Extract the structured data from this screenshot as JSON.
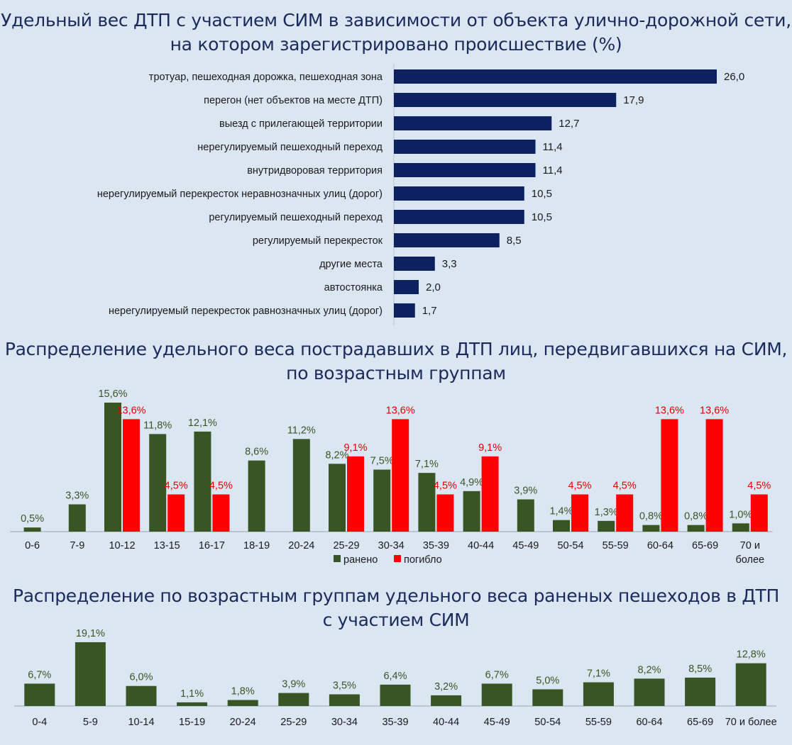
{
  "colors": {
    "background": "#dbe6f3",
    "navy": "#0d2160",
    "green": "#375623",
    "red": "#ff0000",
    "title": "#1a2a5a"
  },
  "chart_data": [
    {
      "type": "bar",
      "orientation": "horizontal",
      "title_lines": [
        "Удельный вес ДТП с участием СИМ в зависимости от объекта улично-дорожной сети,",
        "на котором зарегистрировано происшествие (%)"
      ],
      "categories": [
        "тротуар, пешеходная дорожка, пешеходная зона",
        "перегон (нет объектов на месте ДТП)",
        "выезд с прилегающей территории",
        "нерегулируемый пешеходный переход",
        "внутридворовая территория",
        "нерегулируемый перекресток неравнозначных улиц (дорог)",
        "регулируемый пешеходный переход",
        "регулируемый перекресток",
        "другие места",
        "автостоянка",
        "нерегулируемый перекресток равнозначных улиц (дорог)"
      ],
      "values": [
        26.0,
        17.9,
        12.7,
        11.4,
        11.4,
        10.5,
        10.5,
        8.5,
        3.3,
        2.0,
        1.7
      ],
      "labels": [
        "26,0",
        "17,9",
        "12,7",
        "11,4",
        "11,4",
        "10,5",
        "10,5",
        "8,5",
        "3,3",
        "2,0",
        "1,7"
      ],
      "xlim": [
        0,
        26.0
      ],
      "grid": false
    },
    {
      "type": "bar",
      "title_lines": [
        "Распределение удельного веса пострадавших в ДТП лиц, передвигавшихся на СИМ,",
        "по возрастным группам"
      ],
      "categories": [
        "0-6",
        "7-9",
        "10-12",
        "13-15",
        "16-17",
        "18-19",
        "20-24",
        "25-29",
        "30-34",
        "35-39",
        "40-44",
        "45-49",
        "50-54",
        "55-59",
        "60-64",
        "65-69",
        "70 и более"
      ],
      "category_lines": [
        [
          "0-6"
        ],
        [
          "7-9"
        ],
        [
          "10-12"
        ],
        [
          "13-15"
        ],
        [
          "16-17"
        ],
        [
          "18-19"
        ],
        [
          "20-24"
        ],
        [
          "25-29"
        ],
        [
          "30-34"
        ],
        [
          "35-39"
        ],
        [
          "40-44"
        ],
        [
          "45-49"
        ],
        [
          "50-54"
        ],
        [
          "55-59"
        ],
        [
          "60-64"
        ],
        [
          "65-69"
        ],
        [
          "70 и",
          "более"
        ]
      ],
      "series": [
        {
          "name": "ранено",
          "values": [
            0.5,
            3.3,
            15.6,
            11.8,
            12.1,
            8.6,
            11.2,
            8.2,
            7.5,
            7.1,
            4.9,
            3.9,
            1.4,
            1.3,
            0.8,
            0.8,
            1.0
          ],
          "labels": [
            "0,5%",
            "3,3%",
            "15,6%",
            "11,8%",
            "12,1%",
            "8,6%",
            "11,2%",
            "8,2%",
            "7,5%",
            "7,1%",
            "4,9%",
            "3,9%",
            "1,4%",
            "1,3%",
            "0,8%",
            "0,8%",
            "1,0%"
          ]
        },
        {
          "name": "погибло",
          "values": [
            null,
            null,
            13.6,
            4.5,
            4.5,
            null,
            null,
            9.1,
            13.6,
            4.5,
            9.1,
            null,
            4.5,
            4.5,
            13.6,
            13.6,
            4.5
          ],
          "labels": [
            null,
            null,
            "13,6%",
            "4,5%",
            "4,5%",
            null,
            null,
            "9,1%",
            "13,6%",
            "4,5%",
            "9,1%",
            null,
            "4,5%",
            "4,5%",
            "13,6%",
            "13,6%",
            "4,5%"
          ]
        }
      ],
      "ylim": [
        0,
        15.6
      ],
      "legend": "bottom-center",
      "grid": false
    },
    {
      "type": "bar",
      "title_lines": [
        "Распределение по возрастным группам удельного веса раненых пешеходов в ДТП",
        "с участием СИМ"
      ],
      "categories": [
        "0-4",
        "5-9",
        "10-14",
        "15-19",
        "20-24",
        "25-29",
        "30-34",
        "35-39",
        "40-44",
        "45-49",
        "50-54",
        "55-59",
        "60-64",
        "65-69",
        "70 и более"
      ],
      "values": [
        6.7,
        19.1,
        6.0,
        1.1,
        1.8,
        3.9,
        3.5,
        6.4,
        3.2,
        6.7,
        5.0,
        7.1,
        8.2,
        8.5,
        12.8
      ],
      "labels": [
        "6,7%",
        "19,1%",
        "6,0%",
        "1,1%",
        "1,8%",
        "3,9%",
        "3,5%",
        "6,4%",
        "3,2%",
        "6,7%",
        "5,0%",
        "7,1%",
        "8,2%",
        "8,5%",
        "12,8%"
      ],
      "ylim": [
        0,
        19.1
      ],
      "grid": false
    }
  ]
}
